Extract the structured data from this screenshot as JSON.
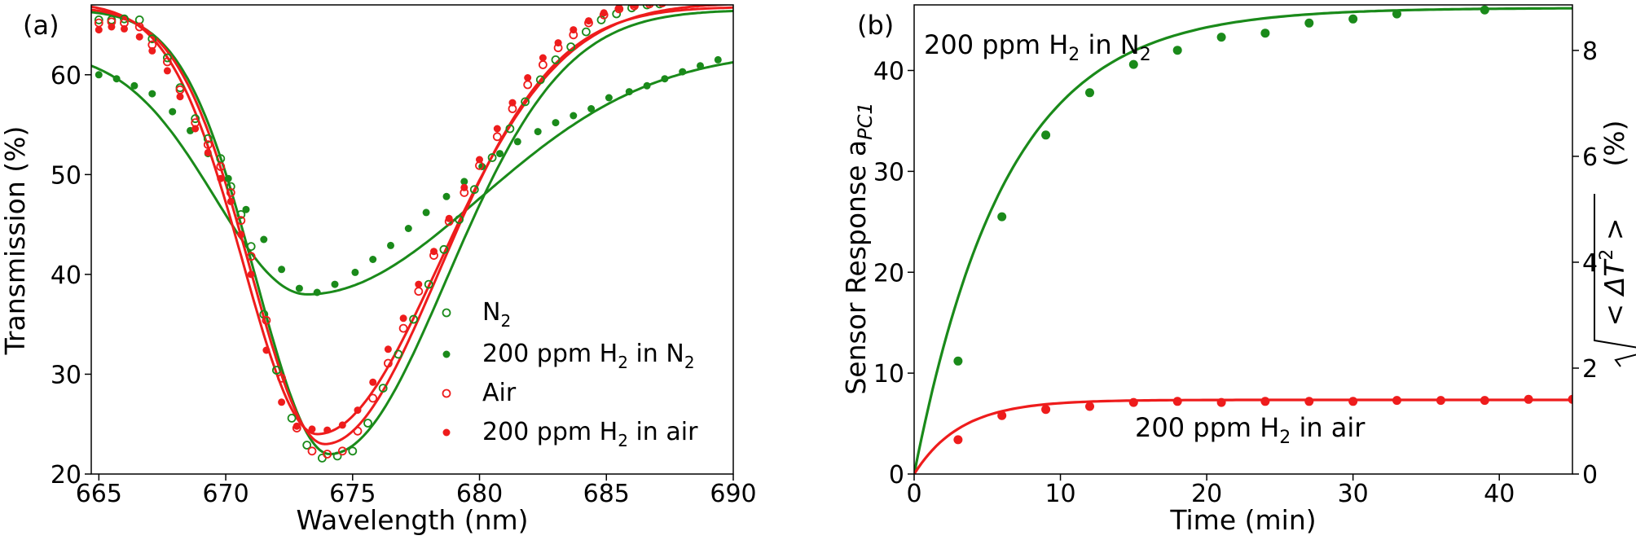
{
  "chart_data": [
    {
      "panel_label": "(a)",
      "type": "scatter",
      "xlabel": "Wavelength (nm)",
      "ylabel": "Transmission (%)",
      "xlim": [
        664.7,
        690
      ],
      "ylim": [
        20,
        67
      ],
      "xticks": [
        "665",
        "670",
        "675",
        "680",
        "685",
        "690"
      ],
      "yticks": [
        "20",
        "30",
        "40",
        "50",
        "60"
      ],
      "grid": false,
      "legend_position": "lower-right",
      "series": [
        {
          "name": "N2",
          "legend_main": "N",
          "legend_sub": "2",
          "color": "#1a8a1a",
          "marker": "open",
          "fit": {
            "base": 66.5,
            "depth": 44.5,
            "center": 674.1,
            "left_width": 2.9,
            "right_width": 4.6
          },
          "x": [
            665.0,
            665.5,
            666.0,
            666.6,
            667.1,
            667.7,
            668.2,
            668.8,
            669.3,
            669.8,
            670.2,
            670.6,
            671.0,
            671.5,
            672.0,
            672.6,
            673.2,
            673.8,
            674.4,
            675.0,
            675.6,
            676.2,
            676.8,
            677.4,
            678.0,
            678.6,
            679.2,
            679.8,
            680.5,
            681.2,
            681.8,
            682.4,
            683.0,
            683.6,
            684.2,
            684.8,
            685.4,
            686.0,
            686.6,
            687.1
          ],
          "y": [
            65.5,
            65.5,
            65.6,
            65.5,
            63.6,
            61.7,
            58.7,
            55.6,
            53.6,
            51.6,
            48.8,
            46.0,
            42.8,
            36.0,
            30.4,
            25.6,
            22.9,
            21.6,
            21.8,
            22.3,
            25.1,
            28.6,
            32.0,
            35.5,
            39.0,
            42.5,
            45.5,
            48.5,
            51.7,
            54.6,
            57.3,
            59.5,
            61.5,
            62.8,
            64.3,
            65.5,
            66.1,
            66.7,
            67.0,
            67.1
          ]
        },
        {
          "name": "200 ppm H2 in N2",
          "legend_main": "200 ppm H",
          "legend_sub": "2",
          "legend_tail": " in N",
          "legend_sub2": "2",
          "color": "#1a8a1a",
          "marker": "filled",
          "fit": {
            "base": 62.4,
            "depth": 24.4,
            "center": 673.2,
            "left_width": 3.6,
            "right_width": 6.8
          },
          "x": [
            665.0,
            665.7,
            666.4,
            667.1,
            667.9,
            668.6,
            669.3,
            670.1,
            670.8,
            671.5,
            672.2,
            672.9,
            673.6,
            674.3,
            675.1,
            675.8,
            676.5,
            677.2,
            677.9,
            678.7,
            679.4,
            680.1,
            680.8,
            681.5,
            682.3,
            683.0,
            683.7,
            684.4,
            685.1,
            685.9,
            686.6,
            687.3,
            688.0,
            688.7,
            689.4
          ],
          "y": [
            60.0,
            59.6,
            58.9,
            58.1,
            56.3,
            54.4,
            52.1,
            49.6,
            46.5,
            43.5,
            40.5,
            38.6,
            38.2,
            39.0,
            40.2,
            41.5,
            42.9,
            44.6,
            46.2,
            47.8,
            49.3,
            50.8,
            52.1,
            53.3,
            54.3,
            55.2,
            55.9,
            56.6,
            57.7,
            58.3,
            58.9,
            59.6,
            60.3,
            60.9,
            61.5
          ]
        },
        {
          "name": "Air",
          "legend_main": "Air",
          "color": "#ee1c1c",
          "marker": "open",
          "fit": {
            "base": 66.8,
            "depth": 43.8,
            "center": 673.9,
            "left_width": 2.9,
            "right_width": 4.5
          },
          "x": [
            665.0,
            665.5,
            666.0,
            666.6,
            667.1,
            667.7,
            668.2,
            668.8,
            669.3,
            669.8,
            670.2,
            670.6,
            671.0,
            671.6,
            672.2,
            672.8,
            673.4,
            674.0,
            674.6,
            675.2,
            675.8,
            676.4,
            677.0,
            677.6,
            678.2,
            678.8,
            679.4,
            680.0,
            680.7,
            681.3,
            681.9,
            682.5,
            683.1,
            683.7,
            684.3,
            684.9,
            685.5,
            686.1,
            686.7,
            687.2
          ],
          "y": [
            65.2,
            65.3,
            65.2,
            64.8,
            63.0,
            61.3,
            58.5,
            55.2,
            53.0,
            50.8,
            48.2,
            45.4,
            41.8,
            35.4,
            29.6,
            24.6,
            22.3,
            22.0,
            22.3,
            24.3,
            27.6,
            31.1,
            34.6,
            38.3,
            41.9,
            45.3,
            48.2,
            50.9,
            53.8,
            56.6,
            59.0,
            61.0,
            62.7,
            64.0,
            65.2,
            66.0,
            66.6,
            66.9,
            67.1,
            67.2
          ]
        },
        {
          "name": "200 ppm H2 in air",
          "legend_main": "200 ppm H",
          "legend_sub": "2",
          "legend_tail": " in air",
          "color": "#ee1c1c",
          "marker": "filled",
          "fit": {
            "base": 67.2,
            "depth": 43.2,
            "center": 673.6,
            "left_width": 2.9,
            "right_width": 4.8
          },
          "x": [
            665.0,
            665.5,
            666.0,
            666.6,
            667.1,
            667.7,
            668.2,
            668.8,
            669.3,
            669.8,
            670.2,
            670.6,
            671.0,
            671.6,
            672.2,
            672.8,
            673.4,
            674.0,
            674.6,
            675.2,
            675.8,
            676.4,
            677.0,
            677.6,
            678.2,
            678.8,
            679.4,
            680.0,
            680.7,
            681.3,
            681.9,
            682.5,
            683.1,
            683.7,
            684.3,
            684.9,
            685.5,
            686.1,
            686.7,
            687.2
          ],
          "y": [
            64.5,
            64.8,
            64.6,
            63.8,
            62.4,
            60.4,
            57.8,
            54.6,
            52.2,
            49.6,
            47.3,
            44.0,
            40.0,
            32.4,
            27.2,
            24.8,
            24.5,
            24.4,
            24.9,
            26.4,
            29.2,
            32.5,
            35.6,
            39.0,
            42.3,
            45.6,
            48.7,
            51.5,
            54.6,
            57.2,
            59.7,
            61.7,
            63.2,
            64.5,
            65.4,
            66.2,
            66.7,
            67.0,
            67.2,
            67.3
          ]
        }
      ]
    },
    {
      "panel_label": "(b)",
      "type": "scatter",
      "xlabel": "Time (min)",
      "ylabel": "Sensor Response a",
      "ylabel_sub": "PC1",
      "y2label_lead": "< ΔT",
      "y2label_sup": "2",
      "y2label_tail": " >",
      "y2label_unit": "(%)",
      "xlim": [
        0,
        45
      ],
      "ylim": [
        0,
        46.5
      ],
      "y2lim": [
        0,
        8.86
      ],
      "xticks": [
        "0",
        "10",
        "20",
        "30",
        "40"
      ],
      "yticks": [
        "0",
        "10",
        "20",
        "30",
        "40"
      ],
      "y2ticks": [
        "0",
        "2",
        "4",
        "6",
        "8"
      ],
      "grid": false,
      "series": [
        {
          "name": "200 ppm H2 in N2",
          "label_main": "200 ppm H",
          "label_sub": "2",
          "label_tail": " in N",
          "label_sub2": "2",
          "color": "#1a8a1a",
          "fit": {
            "amplitude": 46.2,
            "tau": 6.3
          },
          "x": [
            3,
            6,
            9,
            12,
            15,
            18,
            21,
            24,
            27,
            30,
            33,
            39
          ],
          "y": [
            11.2,
            25.5,
            33.6,
            37.8,
            40.6,
            42.0,
            43.3,
            43.7,
            44.7,
            45.1,
            45.6,
            46.0
          ]
        },
        {
          "name": "200 ppm H2 in air",
          "label_main": "200 ppm H",
          "label_sub": "2",
          "label_tail": " in air",
          "color": "#ee1c1c",
          "fit": {
            "amplitude": 7.35,
            "tau": 3.2
          },
          "x": [
            3,
            6,
            9,
            12,
            15,
            18,
            21,
            24,
            27,
            30,
            33,
            36,
            39,
            42,
            45
          ],
          "y": [
            3.4,
            5.8,
            6.4,
            6.7,
            7.1,
            7.2,
            7.1,
            7.2,
            7.2,
            7.2,
            7.3,
            7.3,
            7.3,
            7.4,
            7.4
          ]
        }
      ]
    }
  ]
}
